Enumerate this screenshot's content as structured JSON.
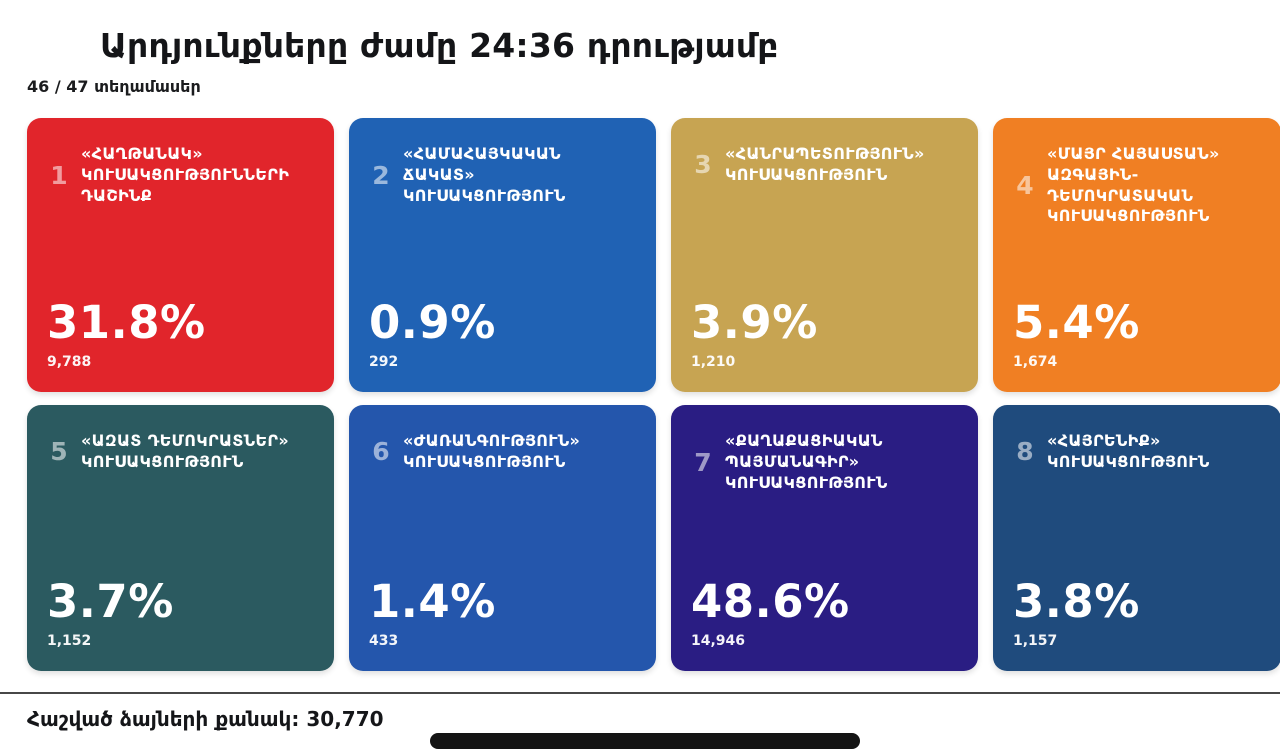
{
  "header": {
    "title": "Արդյունքները ժամը 24:36 դրությամբ",
    "subtitle": "46 / 47 տեղամասեր"
  },
  "cards": [
    {
      "number": "1",
      "name_lines": [
        "«ՀԱՂԹԱՆԱԿ»",
        "ԿՈՒՍԱԿՑՈՒԹՅՈՒՆՆԵՐԻ",
        "ԴԱՇԻՆՔ"
      ],
      "percent": "31.8%",
      "votes": "9,788",
      "color": "#e1252b"
    },
    {
      "number": "2",
      "name_lines": [
        "«ՀԱՄԱՀԱՅԿԱԿԱՆ",
        "ՃԱԿԱՏ»",
        "ԿՈՒՍԱԿՑՈՒԹՅՈՒՆ"
      ],
      "percent": "0.9%",
      "votes": "292",
      "color": "#2062b4"
    },
    {
      "number": "3",
      "name_lines": [
        "«ՀԱՆՐԱՊԵՏՈՒԹՅՈՒՆ»",
        "ԿՈՒՍԱԿՑՈՒԹՅՈՒՆ"
      ],
      "percent": "3.9%",
      "votes": "1,210",
      "color": "#c7a452"
    },
    {
      "number": "4",
      "name_lines": [
        "«ՄԱՅՐ ՀԱՅԱՍՏԱՆ»",
        "ԱԶԳԱՅԻՆ-",
        "ԴԵՄՈԿՐԱՏԱԿԱՆ",
        "ԿՈՒՍԱԿՑՈՒԹՅՈՒՆ"
      ],
      "percent": "5.4%",
      "votes": "1,674",
      "color": "#f07f23"
    },
    {
      "number": "5",
      "name_lines": [
        "«ԱԶԱՏ ԴԵՄՈԿՐԱՏՆԵՐ»",
        "ԿՈՒՍԱԿՑՈՒԹՅՈՒՆ"
      ],
      "percent": "3.7%",
      "votes": "1,152",
      "color": "#2b5a60"
    },
    {
      "number": "6",
      "name_lines": [
        "«ԺԱՌԱՆԳՈՒԹՅՈՒՆ»",
        "ԿՈՒՍԱԿՑՈՒԹՅՈՒՆ"
      ],
      "percent": "1.4%",
      "votes": "433",
      "color": "#2456ac"
    },
    {
      "number": "7",
      "name_lines": [
        "«ՔԱՂԱՔԱՑԻԱԿԱՆ",
        "ՊԱՅՄԱՆԱԳԻՐ»",
        "ԿՈՒՍԱԿՑՈՒԹՅՈՒՆ"
      ],
      "percent": "48.6%",
      "votes": "14,946",
      "color": "#2a1d83"
    },
    {
      "number": "8",
      "name_lines": [
        "«ՀԱՅՐԵՆԻՔ»",
        "ԿՈՒՍԱԿՑՈՒԹՅՈՒՆ"
      ],
      "percent": "3.8%",
      "votes": "1,157",
      "color": "#1f4b7d"
    }
  ],
  "footer": {
    "total_label": "Հաշված ձայների քանակ: 30,770"
  },
  "chart_data": {
    "type": "table",
    "title": "Արդյունքները ժամը 24:36 դրությամբ",
    "subtitle": "46 / 47 տեղամասեր",
    "categories": [
      "«ՀԱՂԹԱՆԱԿ» ԿՈՒՍԱԿՑՈՒԹՅՈՒՆՆԵՐԻ ԴԱՇԻՆՔ",
      "«ՀԱՄԱՀԱՅԿԱԿԱՆ ՃԱԿԱՏ» ԿՈՒՍԱԿՑՈՒԹՅՈՒՆ",
      "«ՀԱՆՐԱՊԵՏՈՒԹՅՈՒՆ» ԿՈՒՍԱԿՑՈՒԹՅՈՒՆ",
      "«ՄԱՅՐ ՀԱՅԱՍՏԱՆ» ԱԶԳԱՅԻՆ-ԴԵՄՈԿՐԱՏԱԿԱՆ ԿՈՒՍԱԿՑՈՒԹՅՈՒՆ",
      "«ԱԶԱՏ ԴԵՄՈԿՐԱՏՆԵՐ» ԿՈՒՍԱԿՑՈՒԹՅՈՒՆ",
      "«ԺԱՌԱՆԳՈՒԹՅՈՒՆ» ԿՈՒՍԱԿՑՈՒԹՅՈՒՆ",
      "«ՔԱՂԱՔԱՑԻԱԿԱՆ ՊԱՅՄԱՆԱԳԻՐ» ԿՈՒՍԱԿՑՈՒԹՅՈՒՆ",
      "«ՀԱՅՐԵՆԻՔ» ԿՈՒՍԱԿՑՈՒԹՅՈՒՆ"
    ],
    "series": [
      {
        "name": "percent",
        "values": [
          31.8,
          0.9,
          3.9,
          5.4,
          3.7,
          1.4,
          48.6,
          3.8
        ]
      },
      {
        "name": "votes",
        "values": [
          9788,
          292,
          1210,
          1674,
          1152,
          433,
          14946,
          1157
        ]
      }
    ],
    "colors": [
      "#e1252b",
      "#2062b4",
      "#c7a452",
      "#f07f23",
      "#2b5a60",
      "#2456ac",
      "#2a1d83",
      "#1f4b7d"
    ],
    "total_votes": 30770,
    "precincts_counted": 46,
    "precincts_total": 47
  }
}
